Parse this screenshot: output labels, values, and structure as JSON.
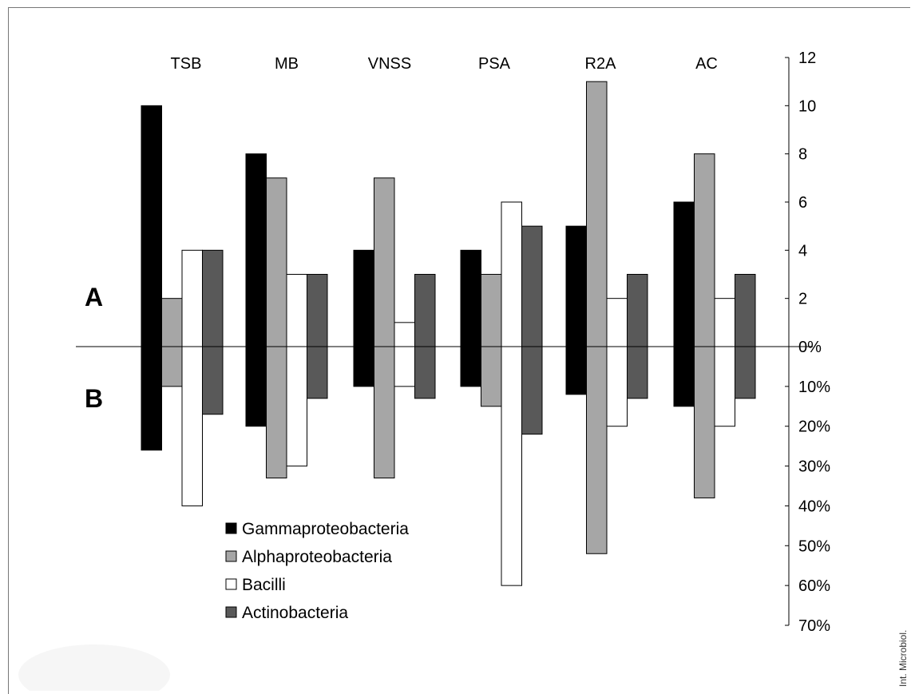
{
  "chart_data": {
    "type": "bar",
    "categories": [
      "TSB",
      "MB",
      "VNSS",
      "PSA",
      "R2A",
      "AC"
    ],
    "panel_labels": {
      "top": "A",
      "bottom": "B"
    },
    "top_axis": {
      "ticks": [
        "12",
        "10",
        "8",
        "6",
        "4",
        "2",
        "0%"
      ],
      "ylim": [
        0,
        12
      ]
    },
    "bottom_axis": {
      "ticks": [
        "10%",
        "20%",
        "30%",
        "40%",
        "50%",
        "60%",
        "70%"
      ],
      "ylim": [
        0,
        70
      ]
    },
    "series": [
      {
        "name": "Gammaproteobacteria",
        "color": "#000000",
        "a_values": [
          10,
          8,
          4,
          4,
          5,
          6
        ],
        "b_values": [
          26,
          20,
          10,
          10,
          12,
          15
        ]
      },
      {
        "name": "Alphaproteobacteria",
        "color": "#a6a6a6",
        "a_values": [
          2,
          7,
          7,
          3,
          11,
          8
        ],
        "b_values": [
          10,
          33,
          33,
          15,
          52,
          38
        ]
      },
      {
        "name": "Bacilli",
        "color": "#ffffff",
        "a_values": [
          4,
          3,
          1,
          6,
          2,
          2
        ],
        "b_values": [
          40,
          30,
          10,
          60,
          20,
          20
        ]
      },
      {
        "name": "Actinobacteria",
        "color": "#595959",
        "a_values": [
          4,
          3,
          3,
          5,
          3,
          3
        ],
        "b_values": [
          17,
          13,
          13,
          22,
          13,
          13
        ]
      }
    ],
    "legend_position": "bottom-left",
    "grid": false,
    "credit": "Int. Microbiol."
  }
}
